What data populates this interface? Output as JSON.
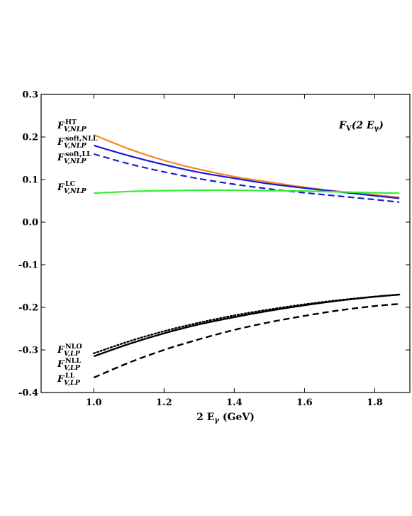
{
  "chart_data": {
    "type": "line",
    "title": "",
    "annotation": {
      "main": "F",
      "sub": "V",
      "arg": "(2 E",
      "arg_sub": "γ",
      "close": ")"
    },
    "xlabel": {
      "main": "2 E",
      "sub": "γ",
      "unit": " (GeV)"
    },
    "ylabel": "",
    "xlim": [
      0.85,
      1.9
    ],
    "ylim": [
      -0.4,
      0.3
    ],
    "xticks": [
      "1.0",
      "1.2",
      "1.4",
      "1.6",
      "1.8"
    ],
    "xtick_values": [
      1.0,
      1.2,
      1.4,
      1.6,
      1.8
    ],
    "yticks": [
      "-0.4",
      "-0.3",
      "-0.2",
      "-0.1",
      "0.0",
      "0.1",
      "0.2",
      "0.3"
    ],
    "ytick_values": [
      -0.4,
      -0.3,
      -0.2,
      -0.1,
      0.0,
      0.1,
      0.2,
      0.3
    ],
    "grid": false,
    "series": [
      {
        "label": {
          "main": "F",
          "sup": "HT",
          "sub": "V,NLP"
        },
        "color": "#f5891e",
        "style": "solid",
        "x": [
          1.0,
          1.1,
          1.2,
          1.3,
          1.4,
          1.5,
          1.6,
          1.7,
          1.8,
          1.87
        ],
        "y": [
          0.205,
          0.172,
          0.145,
          0.124,
          0.107,
          0.094,
          0.082,
          0.072,
          0.064,
          0.058
        ]
      },
      {
        "label": {
          "main": "F",
          "sup": "soft,NLL",
          "sub": "V,NLP"
        },
        "color": "#1a1adb",
        "style": "solid",
        "x": [
          1.0,
          1.1,
          1.2,
          1.3,
          1.4,
          1.5,
          1.6,
          1.7,
          1.8,
          1.87
        ],
        "y": [
          0.18,
          0.156,
          0.135,
          0.117,
          0.103,
          0.09,
          0.08,
          0.071,
          0.062,
          0.056
        ]
      },
      {
        "label": {
          "main": "F",
          "sup": "soft,LL",
          "sub": "V,NLP"
        },
        "color": "#1a1adb",
        "style": "dashed",
        "x": [
          1.0,
          1.1,
          1.2,
          1.3,
          1.4,
          1.5,
          1.6,
          1.7,
          1.8,
          1.87
        ],
        "y": [
          0.16,
          0.137,
          0.118,
          0.102,
          0.089,
          0.078,
          0.069,
          0.061,
          0.053,
          0.047
        ]
      },
      {
        "label": {
          "main": "F",
          "sup": "LC",
          "sub": "V,NLP"
        },
        "color": "#33ee33",
        "style": "solid",
        "x": [
          1.0,
          1.1,
          1.2,
          1.3,
          1.4,
          1.5,
          1.6,
          1.7,
          1.8,
          1.87
        ],
        "y": [
          0.068,
          0.072,
          0.074,
          0.075,
          0.075,
          0.074,
          0.073,
          0.071,
          0.069,
          0.068
        ]
      },
      {
        "label": {
          "main": "F",
          "sup": "NLO",
          "sub": "V,LP"
        },
        "color": "#000000",
        "style": "dotted",
        "x": [
          1.0,
          1.1,
          1.2,
          1.3,
          1.4,
          1.5,
          1.6,
          1.7,
          1.8,
          1.87
        ],
        "y": [
          -0.308,
          -0.28,
          -0.256,
          -0.236,
          -0.219,
          -0.205,
          -0.193,
          -0.183,
          -0.175,
          -0.17
        ]
      },
      {
        "label": {
          "main": "F",
          "sup": "NLL",
          "sub": "V,LP"
        },
        "color": "#000000",
        "style": "solid",
        "x": [
          1.0,
          1.1,
          1.2,
          1.3,
          1.4,
          1.5,
          1.6,
          1.7,
          1.8,
          1.87
        ],
        "y": [
          -0.315,
          -0.286,
          -0.261,
          -0.24,
          -0.223,
          -0.208,
          -0.195,
          -0.184,
          -0.175,
          -0.17
        ]
      },
      {
        "label": {
          "main": "F",
          "sup": "LL",
          "sub": "V,LP"
        },
        "color": "#000000",
        "style": "dashed",
        "x": [
          1.0,
          1.1,
          1.2,
          1.3,
          1.4,
          1.5,
          1.6,
          1.7,
          1.8,
          1.87
        ],
        "y": [
          -0.365,
          -0.33,
          -0.3,
          -0.275,
          -0.253,
          -0.235,
          -0.22,
          -0.207,
          -0.197,
          -0.192
        ]
      }
    ]
  }
}
